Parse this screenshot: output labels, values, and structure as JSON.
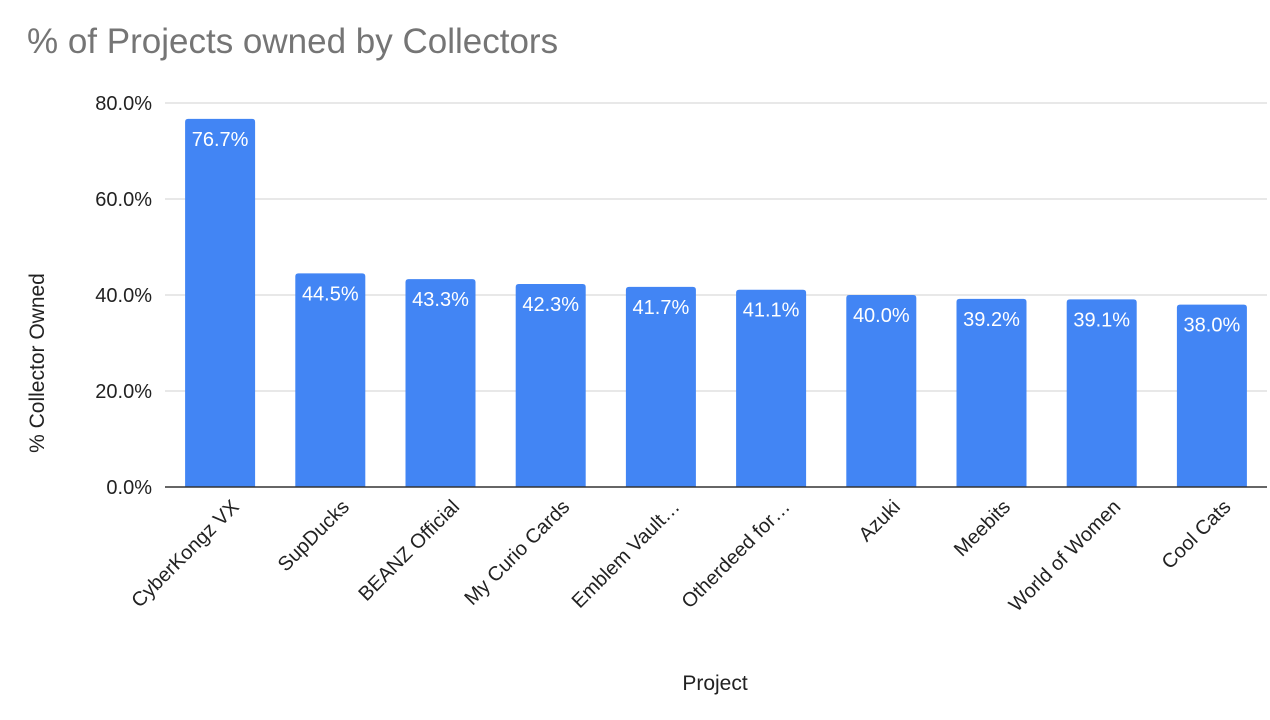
{
  "chart_data": {
    "type": "bar",
    "title": "% of Projects owned by Collectors",
    "xlabel": "Project",
    "ylabel": "% Collector Owned",
    "categories": [
      "CyberKongz VX",
      "SupDucks",
      "BEANZ Official",
      "My Curio Cards",
      "Emblem Vault…",
      "Otherdeed for…",
      "Azuki",
      "Meebits",
      "World of Women",
      "Cool Cats"
    ],
    "values": [
      76.7,
      44.5,
      43.3,
      42.3,
      41.7,
      41.1,
      40.0,
      39.2,
      39.1,
      38.0
    ],
    "data_labels": [
      "76.7%",
      "44.5%",
      "43.3%",
      "42.3%",
      "41.7%",
      "41.1%",
      "40.0%",
      "39.2%",
      "39.1%",
      "38.0%"
    ],
    "ylim": [
      0,
      80
    ],
    "yticks": [
      "0.0%",
      "20.0%",
      "40.0%",
      "60.0%",
      "80.0%"
    ],
    "ytick_values": [
      0,
      20,
      40,
      60,
      80
    ],
    "grid": true,
    "legend": "none",
    "bar_color": "#4285f4"
  }
}
